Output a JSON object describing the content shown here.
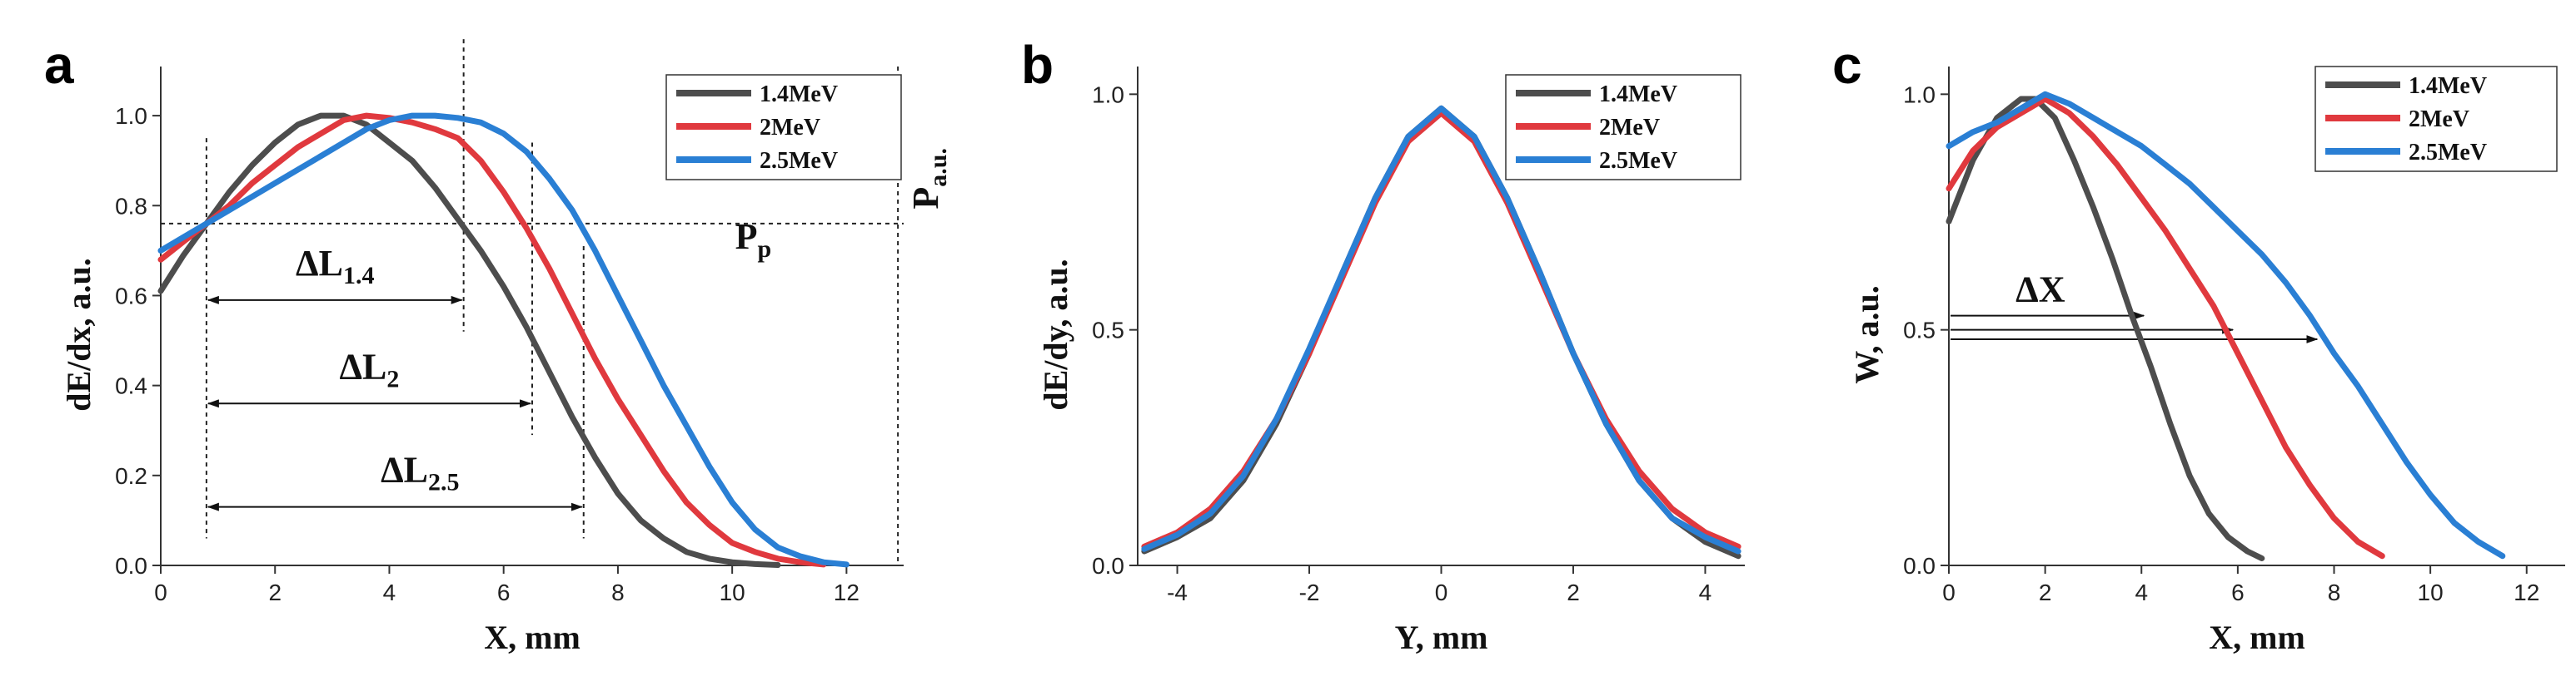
{
  "chart_data": [
    {
      "id": "a",
      "panel_label": "a",
      "type": "line",
      "xlabel": "X, mm",
      "ylabel": "dE/dx, a.u.",
      "xlim": [
        0,
        13
      ],
      "ylim": [
        0,
        1.1
      ],
      "xticks": [
        "0",
        "2",
        "4",
        "6",
        "8",
        "10",
        "12"
      ],
      "yticks": [
        "0.0",
        "0.2",
        "0.4",
        "0.6",
        "0.8",
        "1.0"
      ],
      "legend_position": "top-right",
      "series": [
        {
          "name": "1.4MeV",
          "color": "#4d4d4d",
          "x": [
            0,
            0.4,
            0.8,
            1.2,
            1.6,
            2.0,
            2.4,
            2.8,
            3.2,
            3.6,
            4.0,
            4.4,
            4.8,
            5.2,
            5.6,
            6.0,
            6.4,
            6.8,
            7.2,
            7.6,
            8.0,
            8.4,
            8.8,
            9.2,
            9.6,
            10.0,
            10.4,
            10.8
          ],
          "y": [
            0.61,
            0.69,
            0.76,
            0.83,
            0.89,
            0.94,
            0.98,
            1.0,
            1.0,
            0.98,
            0.94,
            0.9,
            0.84,
            0.77,
            0.7,
            0.62,
            0.53,
            0.43,
            0.33,
            0.24,
            0.16,
            0.1,
            0.06,
            0.03,
            0.015,
            0.007,
            0.003,
            0.001
          ]
        },
        {
          "name": "2MeV",
          "color": "#e0393e",
          "x": [
            0,
            0.4,
            0.8,
            1.2,
            1.6,
            2.0,
            2.4,
            2.8,
            3.2,
            3.6,
            4.0,
            4.4,
            4.8,
            5.2,
            5.6,
            6.0,
            6.4,
            6.8,
            7.2,
            7.6,
            8.0,
            8.4,
            8.8,
            9.2,
            9.6,
            10.0,
            10.4,
            10.8,
            11.2,
            11.6
          ],
          "y": [
            0.68,
            0.72,
            0.76,
            0.8,
            0.85,
            0.89,
            0.93,
            0.96,
            0.99,
            1.0,
            0.995,
            0.985,
            0.97,
            0.95,
            0.9,
            0.83,
            0.75,
            0.66,
            0.56,
            0.46,
            0.37,
            0.29,
            0.21,
            0.14,
            0.09,
            0.05,
            0.03,
            0.015,
            0.007,
            0.002
          ]
        },
        {
          "name": "2.5MeV",
          "color": "#2a7fd4",
          "x": [
            0,
            0.4,
            0.8,
            1.2,
            1.6,
            2.0,
            2.4,
            2.8,
            3.2,
            3.6,
            4.0,
            4.4,
            4.8,
            5.2,
            5.6,
            6.0,
            6.4,
            6.8,
            7.2,
            7.6,
            8.0,
            8.4,
            8.8,
            9.2,
            9.6,
            10.0,
            10.4,
            10.8,
            11.2,
            11.6,
            12.0
          ],
          "y": [
            0.7,
            0.73,
            0.76,
            0.79,
            0.82,
            0.85,
            0.88,
            0.91,
            0.94,
            0.97,
            0.99,
            1.0,
            1.0,
            0.995,
            0.985,
            0.96,
            0.92,
            0.86,
            0.79,
            0.7,
            0.6,
            0.5,
            0.4,
            0.31,
            0.22,
            0.14,
            0.08,
            0.04,
            0.02,
            0.007,
            0.002
          ]
        }
      ],
      "annotations": {
        "p_level": 0.76,
        "p_label_main": "P",
        "p_label_sub": "p",
        "pau_x": 12.9,
        "pau_label_main": "P",
        "pau_label_sub": "a.u.",
        "start_x": 0.8,
        "intervals": [
          {
            "end_x": 5.3,
            "y": 0.59,
            "label_main": "ΔL",
            "label_sub": "1.4",
            "color": "#111111"
          },
          {
            "end_x": 6.5,
            "y": 0.36,
            "label_main": "ΔL",
            "label_sub": "2",
            "color": "#e0393e"
          },
          {
            "end_x": 7.4,
            "y": 0.13,
            "label_main": "ΔL",
            "label_sub": "2.5",
            "color": "#2a7fd4"
          }
        ]
      }
    },
    {
      "id": "b",
      "panel_label": "b",
      "type": "line",
      "xlabel": "Y, mm",
      "ylabel": "dE/dy, a.u.",
      "xlim": [
        -4.6,
        4.6
      ],
      "ylim": [
        0,
        1.05
      ],
      "xticks": [
        "-4",
        "-2",
        "0",
        "2",
        "4"
      ],
      "yticks": [
        "0.0",
        "0.5",
        "1.0"
      ],
      "legend_position": "top-right",
      "series": [
        {
          "name": "1.4MeV",
          "color": "#4d4d4d",
          "x": [
            -4.5,
            -4.0,
            -3.5,
            -3.0,
            -2.5,
            -2.0,
            -1.5,
            -1.0,
            -0.5,
            0,
            0.5,
            1.0,
            1.5,
            2.0,
            2.5,
            3.0,
            3.5,
            4.0,
            4.5
          ],
          "y": [
            0.03,
            0.06,
            0.1,
            0.18,
            0.3,
            0.45,
            0.62,
            0.78,
            0.91,
            0.97,
            0.91,
            0.78,
            0.62,
            0.45,
            0.3,
            0.18,
            0.1,
            0.05,
            0.02
          ]
        },
        {
          "name": "2MeV",
          "color": "#e0393e",
          "x": [
            -4.5,
            -4.0,
            -3.5,
            -3.0,
            -2.5,
            -2.0,
            -1.5,
            -1.0,
            -0.5,
            0,
            0.5,
            1.0,
            1.5,
            2.0,
            2.5,
            3.0,
            3.5,
            4.0,
            4.5
          ],
          "y": [
            0.04,
            0.07,
            0.12,
            0.2,
            0.31,
            0.45,
            0.61,
            0.77,
            0.9,
            0.96,
            0.9,
            0.77,
            0.61,
            0.45,
            0.31,
            0.2,
            0.12,
            0.07,
            0.04
          ]
        },
        {
          "name": "2.5MeV",
          "color": "#2a7fd4",
          "x": [
            -4.5,
            -4.0,
            -3.5,
            -3.0,
            -2.5,
            -2.0,
            -1.5,
            -1.0,
            -0.5,
            0,
            0.5,
            1.0,
            1.5,
            2.0,
            2.5,
            3.0,
            3.5,
            4.0,
            4.5
          ],
          "y": [
            0.035,
            0.065,
            0.11,
            0.19,
            0.31,
            0.46,
            0.62,
            0.78,
            0.91,
            0.97,
            0.91,
            0.78,
            0.62,
            0.45,
            0.3,
            0.18,
            0.1,
            0.06,
            0.03
          ]
        }
      ]
    },
    {
      "id": "c",
      "panel_label": "c",
      "type": "line",
      "xlabel": "X, mm",
      "ylabel": "W, a.u.",
      "xlim": [
        0,
        12.8
      ],
      "ylim": [
        0,
        1.05
      ],
      "xticks": [
        "0",
        "2",
        "4",
        "6",
        "8",
        "10",
        "12"
      ],
      "yticks": [
        "0.0",
        "0.5",
        "1.0"
      ],
      "legend_position": "top-right",
      "series": [
        {
          "name": "1.4MeV",
          "color": "#4d4d4d",
          "x": [
            0,
            0.5,
            1.0,
            1.5,
            1.8,
            2.2,
            2.6,
            3.0,
            3.4,
            3.8,
            4.2,
            4.6,
            5.0,
            5.4,
            5.8,
            6.2,
            6.5
          ],
          "y": [
            0.73,
            0.86,
            0.95,
            0.99,
            0.99,
            0.95,
            0.86,
            0.76,
            0.65,
            0.53,
            0.42,
            0.3,
            0.19,
            0.11,
            0.06,
            0.03,
            0.015
          ]
        },
        {
          "name": "2MeV",
          "color": "#e0393e",
          "x": [
            0,
            0.5,
            1.0,
            1.5,
            2.0,
            2.5,
            3.0,
            3.5,
            4.0,
            4.5,
            5.0,
            5.5,
            6.0,
            6.5,
            7.0,
            7.5,
            8.0,
            8.5,
            9.0
          ],
          "y": [
            0.8,
            0.88,
            0.93,
            0.96,
            0.99,
            0.96,
            0.91,
            0.85,
            0.78,
            0.71,
            0.63,
            0.55,
            0.45,
            0.35,
            0.25,
            0.17,
            0.1,
            0.05,
            0.02
          ]
        },
        {
          "name": "2.5MeV",
          "color": "#2a7fd4",
          "x": [
            0,
            0.5,
            1.0,
            1.5,
            2.0,
            2.5,
            3.0,
            3.5,
            4.0,
            4.5,
            5.0,
            5.5,
            6.0,
            6.5,
            7.0,
            7.5,
            8.0,
            8.5,
            9.0,
            9.5,
            10.0,
            10.5,
            11.0,
            11.5
          ],
          "y": [
            0.89,
            0.92,
            0.94,
            0.97,
            1.0,
            0.98,
            0.95,
            0.92,
            0.89,
            0.85,
            0.81,
            0.76,
            0.71,
            0.66,
            0.6,
            0.53,
            0.45,
            0.38,
            0.3,
            0.22,
            0.15,
            0.09,
            0.05,
            0.02
          ]
        }
      ],
      "annotations": {
        "label": "ΔX",
        "start_x": 0,
        "arrows": [
          {
            "end_x": 4.05,
            "y": 0.53
          },
          {
            "end_x": 5.9,
            "y": 0.5
          },
          {
            "end_x": 7.65,
            "y": 0.48
          }
        ]
      }
    }
  ]
}
